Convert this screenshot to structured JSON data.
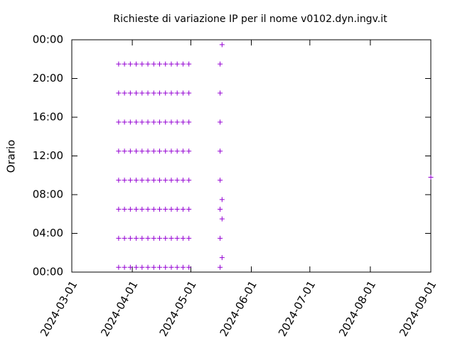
{
  "chart_data": {
    "type": "scatter",
    "title": "Richieste di variazione IP per il nome v0102.dyn.ingv.it",
    "y_label": "Orario",
    "xlim": [
      "2024-03-01",
      "2024-09-01"
    ],
    "xticks": [
      "2024-03-01",
      "2024-04-01",
      "2024-05-01",
      "2024-06-01",
      "2024-07-01",
      "2024-08-01",
      "2024-09-01"
    ],
    "ylim": [
      0,
      24
    ],
    "yticks": [
      {
        "value": 0,
        "label": "00:00"
      },
      {
        "value": 4,
        "label": "04:00"
      },
      {
        "value": 8,
        "label": "08:00"
      },
      {
        "value": 12,
        "label": "12:00"
      },
      {
        "value": 16,
        "label": "16:00"
      },
      {
        "value": 20,
        "label": "20:00"
      },
      {
        "value": 24,
        "label": "00:00"
      }
    ],
    "series": [
      {
        "color": "#9400d3",
        "x": [
          "2024-03-25",
          "2024-03-25",
          "2024-03-25",
          "2024-03-25",
          "2024-03-25",
          "2024-03-25",
          "2024-03-25",
          "2024-03-25",
          "2024-03-28",
          "2024-03-28",
          "2024-03-28",
          "2024-03-28",
          "2024-03-28",
          "2024-03-28",
          "2024-03-28",
          "2024-03-28",
          "2024-03-31",
          "2024-03-31",
          "2024-03-31",
          "2024-03-31",
          "2024-03-31",
          "2024-03-31",
          "2024-03-31",
          "2024-03-31",
          "2024-04-03",
          "2024-04-03",
          "2024-04-03",
          "2024-04-03",
          "2024-04-03",
          "2024-04-03",
          "2024-04-03",
          "2024-04-03",
          "2024-04-06",
          "2024-04-06",
          "2024-04-06",
          "2024-04-06",
          "2024-04-06",
          "2024-04-06",
          "2024-04-06",
          "2024-04-06",
          "2024-04-09",
          "2024-04-09",
          "2024-04-09",
          "2024-04-09",
          "2024-04-09",
          "2024-04-09",
          "2024-04-09",
          "2024-04-09",
          "2024-04-12",
          "2024-04-12",
          "2024-04-12",
          "2024-04-12",
          "2024-04-12",
          "2024-04-12",
          "2024-04-12",
          "2024-04-12",
          "2024-04-15",
          "2024-04-15",
          "2024-04-15",
          "2024-04-15",
          "2024-04-15",
          "2024-04-15",
          "2024-04-15",
          "2024-04-15",
          "2024-04-18",
          "2024-04-18",
          "2024-04-18",
          "2024-04-18",
          "2024-04-18",
          "2024-04-18",
          "2024-04-18",
          "2024-04-18",
          "2024-04-21",
          "2024-04-21",
          "2024-04-21",
          "2024-04-21",
          "2024-04-21",
          "2024-04-21",
          "2024-04-21",
          "2024-04-21",
          "2024-04-24",
          "2024-04-24",
          "2024-04-24",
          "2024-04-24",
          "2024-04-24",
          "2024-04-24",
          "2024-04-24",
          "2024-04-24",
          "2024-04-27",
          "2024-04-27",
          "2024-04-27",
          "2024-04-27",
          "2024-04-27",
          "2024-04-27",
          "2024-04-27",
          "2024-04-27",
          "2024-04-30",
          "2024-04-30",
          "2024-04-30",
          "2024-04-30",
          "2024-04-30",
          "2024-04-30",
          "2024-04-30",
          "2024-04-30",
          "2024-05-16",
          "2024-05-16",
          "2024-05-16",
          "2024-05-16",
          "2024-05-16",
          "2024-05-16",
          "2024-05-16",
          "2024-05-16",
          "2024-05-17",
          "2024-05-17",
          "2024-05-17",
          "2024-05-17",
          "2024-09-01"
        ],
        "values": [
          0.5,
          3.5,
          6.5,
          9.5,
          12.5,
          15.5,
          18.5,
          21.5,
          0.5,
          3.5,
          6.5,
          9.5,
          12.5,
          15.5,
          18.5,
          21.5,
          0.5,
          3.5,
          6.5,
          9.5,
          12.5,
          15.5,
          18.5,
          21.5,
          0.5,
          3.5,
          6.5,
          9.5,
          12.5,
          15.5,
          18.5,
          21.5,
          0.5,
          3.5,
          6.5,
          9.5,
          12.5,
          15.5,
          18.5,
          21.5,
          0.5,
          3.5,
          6.5,
          9.5,
          12.5,
          15.5,
          18.5,
          21.5,
          0.5,
          3.5,
          6.5,
          9.5,
          12.5,
          15.5,
          18.5,
          21.5,
          0.5,
          3.5,
          6.5,
          9.5,
          12.5,
          15.5,
          18.5,
          21.5,
          0.5,
          3.5,
          6.5,
          9.5,
          12.5,
          15.5,
          18.5,
          21.5,
          0.5,
          3.5,
          6.5,
          9.5,
          12.5,
          15.5,
          18.5,
          21.5,
          0.5,
          3.5,
          6.5,
          9.5,
          12.5,
          15.5,
          18.5,
          21.5,
          0.5,
          3.5,
          6.5,
          9.5,
          12.5,
          15.5,
          18.5,
          21.5,
          0.5,
          3.5,
          6.5,
          9.5,
          12.5,
          15.5,
          18.5,
          21.5,
          0.5,
          3.5,
          6.5,
          9.5,
          12.5,
          15.5,
          18.5,
          21.5,
          1.5,
          5.5,
          7.5,
          23.5,
          9.8
        ]
      }
    ]
  }
}
